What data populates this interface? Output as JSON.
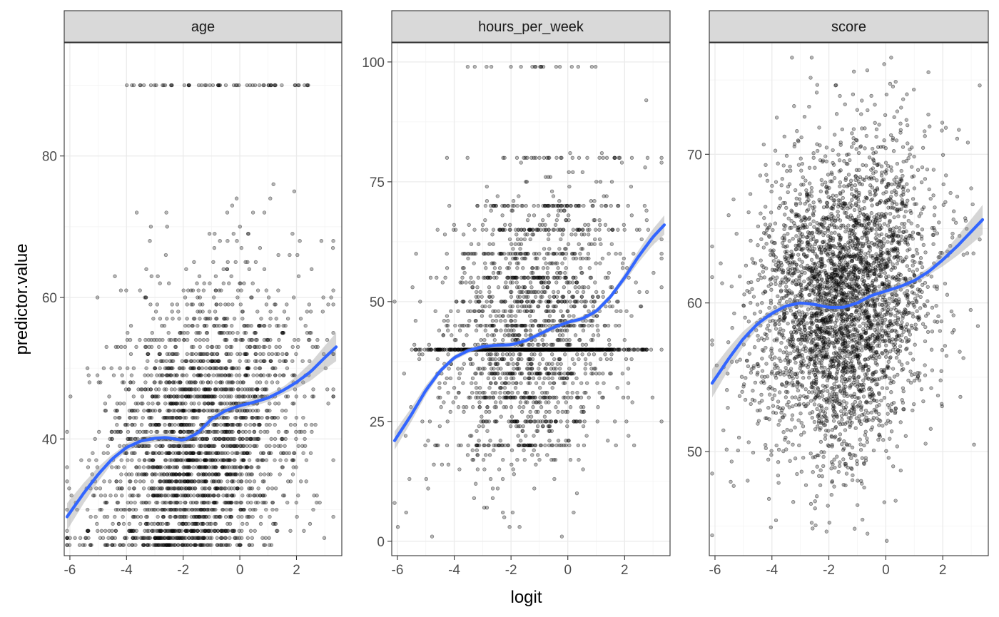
{
  "chart_data": {
    "type": "scatter",
    "facet_layout": "3 panels in one row, free y scales",
    "xlabel": "logit",
    "ylabel": "predictor.value",
    "grid": true,
    "legend": "none",
    "colors": {
      "points": "#000000",
      "smooth_line": "#3366FF",
      "confidence_band": "#999999",
      "strip_fill": "#D9D9D9",
      "panel_border": "#333333"
    },
    "x": {
      "lim": [
        -6.2,
        3.6
      ],
      "ticks": [
        -6,
        -4,
        -2,
        0,
        2
      ],
      "tick_labels": [
        "-6",
        "-4",
        "-2",
        "0",
        "2"
      ]
    },
    "panels": [
      {
        "title": "age",
        "ylim": [
          23.5,
          96
        ],
        "yticks": [
          40,
          60,
          80
        ],
        "ytick_labels": [
          "40",
          "60",
          "80"
        ],
        "points": {
          "y_min": 25,
          "y_max": 90,
          "values_are_integers": true,
          "description_x_range": [
            -6.1,
            3.3
          ]
        },
        "smooth": {
          "x": [
            -6.1,
            -5.5,
            -5,
            -4.5,
            -4,
            -3.5,
            -3,
            -2.6,
            -2,
            -1.5,
            -1,
            -0.5,
            0,
            0.5,
            1,
            1.5,
            2,
            2.5,
            3,
            3.4
          ],
          "y": [
            29,
            32.4,
            35,
            37.2,
            38.8,
            39.7,
            40.1,
            40.2,
            39.8,
            40.8,
            42.8,
            44,
            44.7,
            45.2,
            45.8,
            46.8,
            48,
            49.5,
            51.5,
            53
          ]
        }
      },
      {
        "title": "hours_per_week",
        "ylim": [
          -3,
          104
        ],
        "yticks": [
          0,
          25,
          50,
          75,
          100
        ],
        "ytick_labels": [
          "0",
          "25",
          "50",
          "75",
          "100"
        ],
        "points": {
          "y_min": 1,
          "y_max": 99,
          "values_are_integers": true,
          "common_levels": [
            20,
            25,
            30,
            35,
            40,
            45,
            50,
            55,
            60,
            65,
            70,
            80,
            99
          ],
          "description_x_range": [
            -6.1,
            3.3
          ]
        },
        "smooth": {
          "x": [
            -6.1,
            -5.5,
            -5,
            -4.5,
            -4,
            -3.5,
            -3,
            -2.5,
            -2,
            -1.5,
            -1,
            -0.5,
            0,
            0.5,
            1,
            1.5,
            2,
            2.5,
            3,
            3.4
          ],
          "y": [
            21,
            26.5,
            31.5,
            35.5,
            38.3,
            39.8,
            40.6,
            40.9,
            41,
            41.8,
            43.2,
            44.6,
            45.7,
            46.4,
            48,
            51,
            55,
            59.5,
            63.5,
            66
          ]
        }
      },
      {
        "title": "score",
        "ylim": [
          43,
          77.5
        ],
        "yticks": [
          50,
          60,
          70
        ],
        "ytick_labels": [
          "50",
          "60",
          "70"
        ],
        "points": {
          "y_min": 44,
          "y_max": 76.5,
          "values_are_integers": false,
          "center": 60,
          "description_x_range": [
            -6.1,
            3.3
          ]
        },
        "smooth": {
          "x": [
            -6.1,
            -5.5,
            -5,
            -4.5,
            -4,
            -3.5,
            -3,
            -2.5,
            -2,
            -1.5,
            -1,
            -0.5,
            0,
            0.5,
            1,
            1.5,
            2,
            2.5,
            3,
            3.4
          ],
          "y": [
            54.6,
            56.3,
            57.6,
            58.6,
            59.3,
            59.8,
            60,
            59.9,
            59.7,
            59.7,
            60,
            60.5,
            60.8,
            61.1,
            61.5,
            62.1,
            62.9,
            63.8,
            64.8,
            65.6
          ]
        }
      }
    ]
  }
}
